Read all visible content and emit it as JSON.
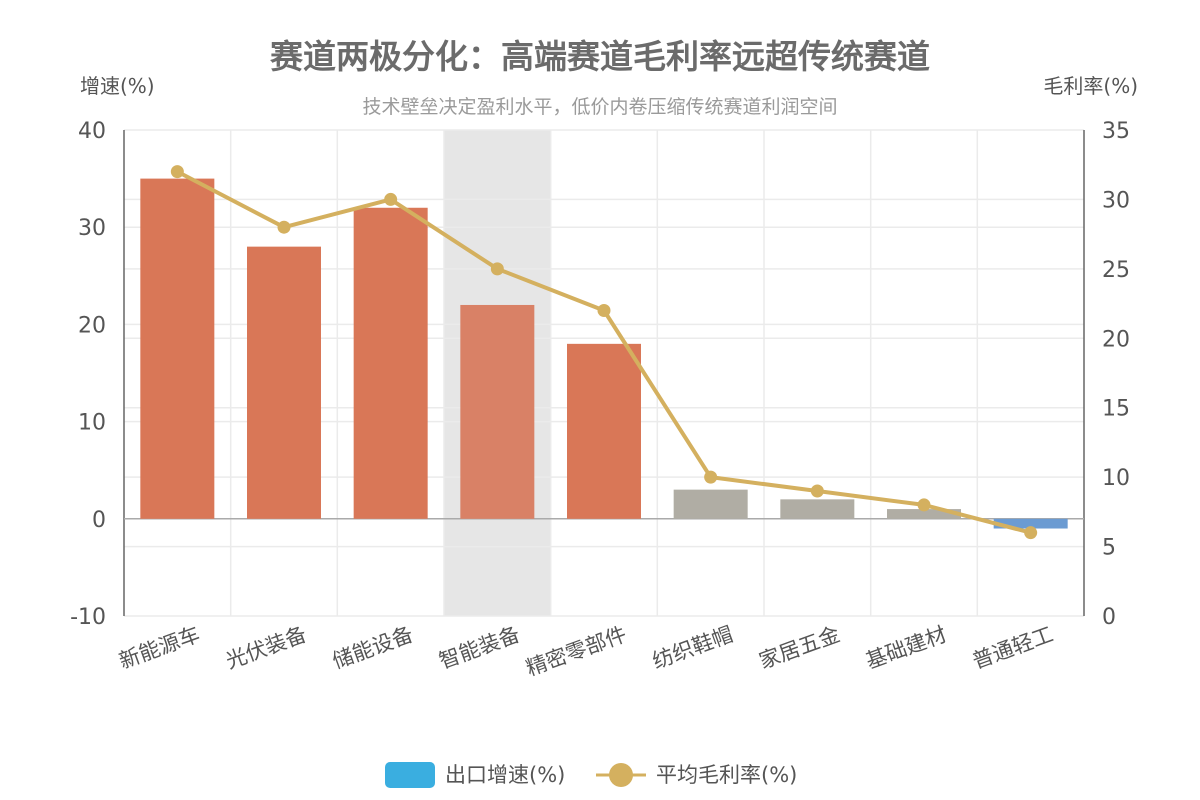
{
  "colors": {
    "bar_high": "#D97757",
    "bar_highlight": "#D98166",
    "bar_low": "#B0ADA4",
    "bar_negative": "#6B9BD2",
    "line": "#D4B05F",
    "legend_bar": "#3AAEE0",
    "highlight_band": "#E6E6E6",
    "grid": "#EBEBEB"
  },
  "chart_data": {
    "type": "bar",
    "title": "赛道两极分化：高端赛道毛利率远超传统赛道",
    "subtitle": "技术壁垒决定盈利水平，低价内卷压缩传统赛道利润空间",
    "ylabel": "增速(%)",
    "y2label": "毛利率(%)",
    "ylim": [
      -10,
      40
    ],
    "yticks": [
      -10,
      0,
      10,
      20,
      30,
      40
    ],
    "y2lim": [
      0,
      35
    ],
    "y2ticks": [
      0,
      5,
      10,
      15,
      20,
      25,
      30,
      35
    ],
    "categories": [
      "新能源车",
      "光伏装备",
      "储能设备",
      "智能装备",
      "精密零部件",
      "纺织鞋帽",
      "家居五金",
      "基础建材",
      "普通轻工"
    ],
    "highlight_category": "智能装备",
    "grid": true,
    "legend_position": "bottom",
    "series": [
      {
        "name": "出口增速(%)",
        "type": "bar",
        "axis": "left",
        "values": [
          35,
          28,
          32,
          22,
          18,
          3,
          2,
          1,
          -1
        ]
      },
      {
        "name": "平均毛利率(%)",
        "type": "line",
        "axis": "right",
        "values": [
          32,
          28,
          30,
          25,
          22,
          10,
          9,
          8,
          6
        ]
      }
    ]
  }
}
